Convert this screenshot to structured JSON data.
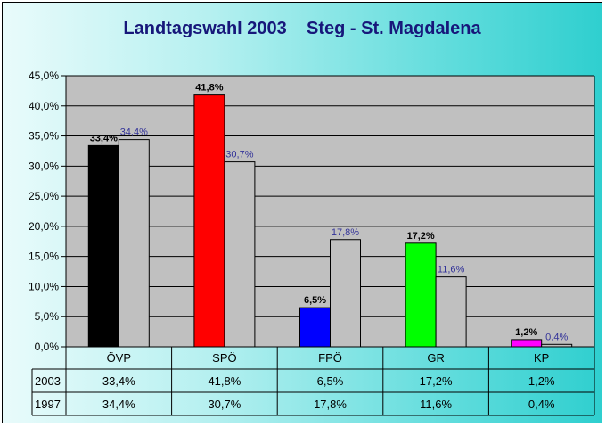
{
  "chart_data": {
    "type": "bar",
    "title": "Landtagswahl 2003    Steg - St. Magdalena",
    "categories": [
      "ÖVP",
      "SPÖ",
      "FPÖ",
      "GR",
      "KP"
    ],
    "series": [
      {
        "name": "2003",
        "values": [
          33.4,
          41.8,
          6.5,
          17.2,
          1.2
        ],
        "labels": [
          "33,4%",
          "41,8%",
          "6,5%",
          "17,2%",
          "1,2%"
        ],
        "colors": [
          "#000000",
          "#ff0000",
          "#0000ff",
          "#00ff00",
          "#ff00ff"
        ]
      },
      {
        "name": "1997",
        "values": [
          34.4,
          30.7,
          17.8,
          11.6,
          0.4
        ],
        "labels": [
          "34,4%",
          "30,7%",
          "17,8%",
          "11,6%",
          "0,4%"
        ],
        "color": "#c0c0c0"
      }
    ],
    "yticks": [
      "0,0%",
      "5,0%",
      "10,0%",
      "15,0%",
      "20,0%",
      "25,0%",
      "30,0%",
      "35,0%",
      "40,0%",
      "45,0%"
    ],
    "ylim": [
      0,
      45
    ],
    "grid": true,
    "plot_background": "#c0c0c0",
    "data_table": true
  }
}
